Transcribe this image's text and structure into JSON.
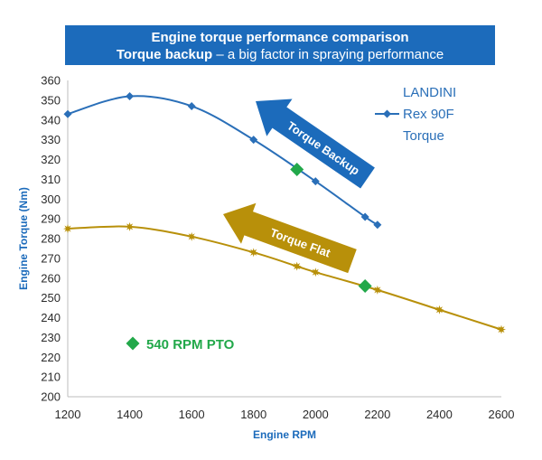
{
  "title": {
    "line1": "Engine torque performance comparison",
    "line2_bold": "Torque backup",
    "line2_rest": " – a big factor in spraying performance"
  },
  "colors": {
    "title_bg": "#1c6bbb",
    "blue_series": "#2a6fb8",
    "gold_series": "#b8900a",
    "marker_green": "#22a84a",
    "arrow_blue": "#1c6bbb",
    "arrow_gold": "#b8900a"
  },
  "chart_data": {
    "type": "line",
    "xlabel": "Engine RPM",
    "ylabel": "Engine Torque (Nm)",
    "xlim": [
      1200,
      2600
    ],
    "ylim": [
      200,
      360
    ],
    "xticks": [
      1200,
      1400,
      1600,
      1800,
      2000,
      2200,
      2400,
      2600
    ],
    "yticks": [
      200,
      210,
      220,
      230,
      240,
      250,
      260,
      270,
      280,
      290,
      300,
      310,
      320,
      330,
      340,
      350,
      360
    ],
    "grid": false,
    "series": [
      {
        "name": "LANDINI Rex 90F Torque",
        "marker": "diamond",
        "color": "#2a6fb8",
        "points": [
          [
            1200,
            343
          ],
          [
            1400,
            352
          ],
          [
            1600,
            347
          ],
          [
            1800,
            330
          ],
          [
            2000,
            309
          ],
          [
            2160,
            291
          ],
          [
            2200,
            287
          ]
        ]
      },
      {
        "marker": "star",
        "color": "#b8900a",
        "points": [
          [
            1200,
            285
          ],
          [
            1400,
            286
          ],
          [
            1600,
            281
          ],
          [
            1800,
            273
          ],
          [
            1940,
            266
          ],
          [
            2000,
            263
          ],
          [
            2200,
            254
          ],
          [
            2400,
            244
          ],
          [
            2600,
            234
          ]
        ]
      }
    ],
    "highlight_points": [
      [
        1940,
        315
      ],
      [
        2160,
        256
      ]
    ],
    "legend": {
      "lines": [
        "LANDINI",
        "Rex 90F",
        "Torque"
      ],
      "position": "top-right"
    },
    "annotations": {
      "torque_backup": "Torque Backup",
      "torque_flat": "Torque Flat",
      "pto_label": "540 RPM PTO"
    }
  }
}
